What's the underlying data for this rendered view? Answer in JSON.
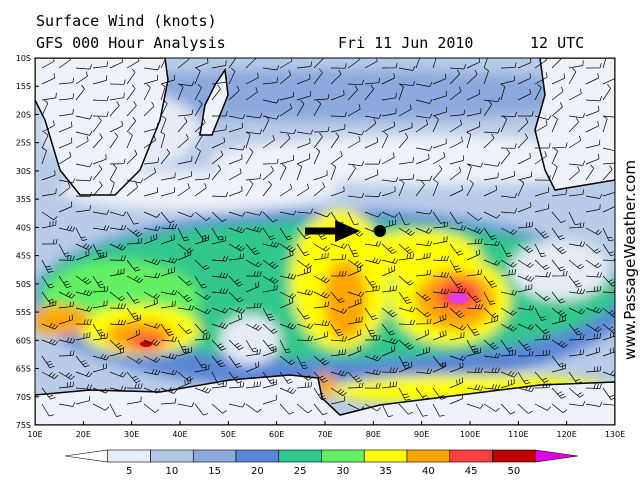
{
  "header": {
    "title": "Surface Wind (knots)",
    "subtitle": "GFS 000 Hour Analysis",
    "date": "Fri 11 Jun 2010",
    "time": "12 UTC"
  },
  "map": {
    "latitude_labels": [
      "10S",
      "15S",
      "20S",
      "25S",
      "30S",
      "35S",
      "40S",
      "45S",
      "50S",
      "55S",
      "60S",
      "65S",
      "70S",
      "75S"
    ],
    "longitude_labels": [
      "10E",
      "20E",
      "30E",
      "40E",
      "50E",
      "60E",
      "70E",
      "80E",
      "90E",
      "100E",
      "110E",
      "120E",
      "130E"
    ]
  },
  "legend": {
    "ticks": [
      "5",
      "10",
      "15",
      "20",
      "25",
      "30",
      "35",
      "40",
      "45",
      "50"
    ]
  },
  "watermark": "www.PassageWeather.com"
}
